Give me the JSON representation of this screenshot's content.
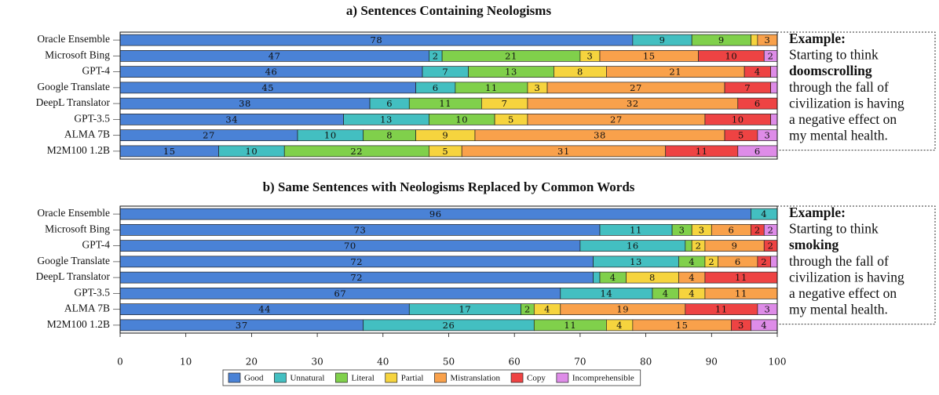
{
  "chart_data": {
    "type": "bar",
    "orientation": "horizontal",
    "stacked": true,
    "legend": "bottom",
    "xlim": [
      0,
      100
    ],
    "xticks": [
      0,
      10,
      20,
      30,
      40,
      50,
      60,
      70,
      80,
      90,
      100
    ],
    "series": [
      {
        "name": "Good",
        "color": "#4a82d6"
      },
      {
        "name": "Unnatural",
        "color": "#43bfc1"
      },
      {
        "name": "Literal",
        "color": "#80d04b"
      },
      {
        "name": "Partial",
        "color": "#f6d43e"
      },
      {
        "name": "Mistranslation",
        "color": "#f9a14b"
      },
      {
        "name": "Copy",
        "color": "#ee4343"
      },
      {
        "name": "Incomprehensible",
        "color": "#de8ce8"
      }
    ],
    "panels": [
      {
        "title": "a) Sentences Containing Neologisms",
        "categories": [
          "Oracle Ensemble",
          "Microsoft Bing",
          "GPT-4",
          "Google Translate",
          "DeepL Translator",
          "GPT-3.5",
          "ALMA 7B",
          "M2M100 1.2B"
        ],
        "values": [
          [
            78,
            47,
            46,
            45,
            38,
            34,
            27,
            15
          ],
          [
            9,
            2,
            7,
            6,
            6,
            13,
            10,
            10
          ],
          [
            9,
            21,
            13,
            11,
            11,
            10,
            8,
            22
          ],
          [
            1,
            3,
            8,
            3,
            7,
            5,
            9,
            5
          ],
          [
            3,
            15,
            21,
            27,
            32,
            27,
            38,
            31
          ],
          [
            0,
            10,
            4,
            7,
            6,
            10,
            5,
            11
          ],
          [
            0,
            2,
            1,
            1,
            0,
            1,
            3,
            6
          ]
        ],
        "example": {
          "label": "Example:",
          "lines": [
            "Starting to think",
            "doomscrolling",
            "through the fall of",
            "civilization is having",
            "a negative effect on",
            "my mental health."
          ]
        }
      },
      {
        "title": "b) Same Sentences with Neologisms Replaced by Common Words",
        "categories": [
          "Oracle Ensemble",
          "Microsoft Bing",
          "GPT-4",
          "Google Translate",
          "DeepL Translator",
          "GPT-3.5",
          "ALMA 7B",
          "M2M100 1.2B"
        ],
        "values": [
          [
            96,
            73,
            70,
            72,
            72,
            67,
            44,
            37
          ],
          [
            4,
            11,
            16,
            13,
            1,
            14,
            17,
            26
          ],
          [
            0,
            3,
            1,
            4,
            4,
            4,
            2,
            11
          ],
          [
            0,
            3,
            2,
            2,
            8,
            4,
            4,
            4
          ],
          [
            0,
            6,
            9,
            6,
            4,
            11,
            19,
            15
          ],
          [
            0,
            2,
            2,
            2,
            11,
            0,
            11,
            3
          ],
          [
            0,
            2,
            0,
            1,
            0,
            0,
            3,
            4
          ]
        ],
        "example": {
          "label": "Example:",
          "lines": [
            "Starting to think",
            "smoking",
            "through the fall of",
            "civilization is having",
            "a negative effect on",
            "my mental health."
          ]
        }
      }
    ]
  }
}
